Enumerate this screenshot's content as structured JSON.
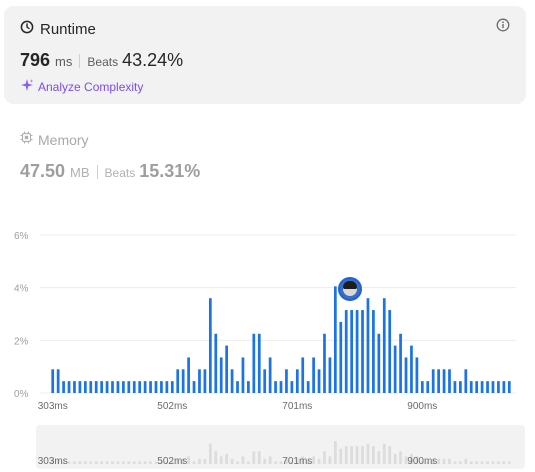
{
  "runtime": {
    "title": "Runtime",
    "value": "796",
    "unit": "ms",
    "beats_label": "Beats",
    "beats_value": "43.24%",
    "analyze_label": "Analyze Complexity"
  },
  "memory": {
    "title": "Memory",
    "value": "47.50",
    "unit": "MB",
    "beats_label": "Beats",
    "beats_value": "15.31%"
  },
  "colors": {
    "bar": "#1a73e8",
    "bar_faded": "#dcdcdc",
    "accent_purple": "#7a4cf0",
    "card_bg": "#f2f2f3"
  },
  "icons": {
    "clock": "clock-icon",
    "info": "info-icon",
    "sparkle": "sparkle-icon",
    "chip": "chip-icon"
  },
  "chart_data": {
    "type": "bar",
    "title": "",
    "xlabel": "",
    "ylabel": "",
    "ylim": [
      0,
      6
    ],
    "y_ticks": [
      "0%",
      "2%",
      "4%",
      "6%"
    ],
    "y_tick_values": [
      0,
      2,
      4,
      6
    ],
    "x_tick_labels": [
      "303ms",
      "502ms",
      "701ms",
      "900ms"
    ],
    "x_tick_indices": [
      0,
      22,
      45,
      68
    ],
    "highlight_index": 56,
    "values": [
      0.9,
      0.9,
      0.45,
      0.45,
      0.45,
      0.45,
      0.45,
      0.45,
      0.45,
      0.45,
      0.45,
      0.45,
      0.45,
      0.45,
      0.45,
      0.45,
      0.45,
      0.45,
      0.45,
      0.45,
      0.45,
      0.45,
      0.45,
      0.9,
      0.9,
      1.35,
      0.45,
      0.9,
      0.9,
      3.6,
      2.25,
      1.35,
      1.8,
      0.9,
      0.45,
      1.35,
      0.45,
      2.25,
      2.25,
      0.9,
      1.35,
      0.45,
      0.45,
      0.9,
      0.45,
      0.9,
      1.35,
      0.45,
      1.35,
      0.9,
      2.25,
      1.35,
      4.05,
      2.7,
      3.15,
      3.15,
      3.15,
      3.15,
      3.6,
      3.15,
      2.25,
      3.6,
      3.15,
      1.8,
      2.25,
      1.35,
      1.8,
      1.35,
      0.45,
      0.45,
      0.9,
      0.9,
      0.9,
      0.9,
      0.45,
      0.45,
      0.9,
      0.45,
      0.45,
      0.45,
      0.45,
      0.45,
      0.45,
      0.45,
      0.45
    ]
  }
}
